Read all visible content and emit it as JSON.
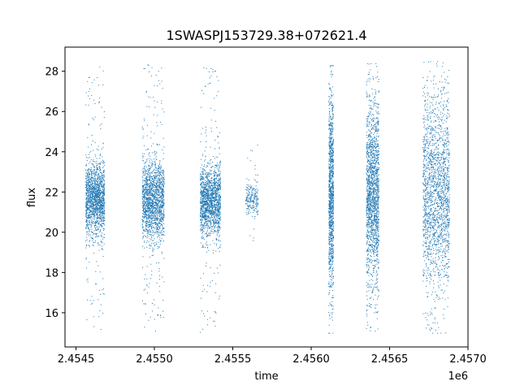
{
  "chart_data": {
    "type": "scatter",
    "title": "1SWASPJ153729.38+072621.4",
    "xlabel": "time",
    "ylabel": "flux",
    "x_offset_label": "1e6",
    "xlim": [
      2454430,
      2457000
    ],
    "ylim": [
      14.3,
      29.2
    ],
    "x_ticks": [
      2454500,
      2455000,
      2455500,
      2456000,
      2456500,
      2457000
    ],
    "x_tick_labels": [
      "2.4545",
      "2.4550",
      "2.4555",
      "2.4560",
      "2.4565",
      "2.4570"
    ],
    "y_ticks": [
      16,
      18,
      20,
      22,
      24,
      26,
      28
    ],
    "y_tick_labels": [
      "16",
      "18",
      "20",
      "22",
      "24",
      "26",
      "28"
    ],
    "grid": false,
    "marker_color": "#1f77b4",
    "series": [
      {
        "clusters": [
          {
            "x_start": 2454560,
            "x_end": 2454680,
            "center": 21.7,
            "core_spread": 0.9,
            "low": 15.0,
            "high": 28.4,
            "points": 1600
          },
          {
            "x_start": 2454920,
            "x_end": 2455060,
            "center": 21.6,
            "core_spread": 1.0,
            "low": 15.0,
            "high": 28.4,
            "points": 1700
          },
          {
            "x_start": 2455290,
            "x_end": 2455420,
            "center": 21.6,
            "core_spread": 0.9,
            "low": 15.0,
            "high": 28.3,
            "points": 1600
          },
          {
            "x_start": 2455580,
            "x_end": 2455660,
            "center": 21.7,
            "core_spread": 0.4,
            "low": 18.5,
            "high": 25.0,
            "points": 220
          },
          {
            "x_start": 2456110,
            "x_end": 2456140,
            "center": 22.0,
            "core_spread": 2.4,
            "low": 15.0,
            "high": 28.3,
            "points": 1100
          },
          {
            "x_start": 2456350,
            "x_end": 2456430,
            "center": 22.0,
            "core_spread": 2.2,
            "low": 15.0,
            "high": 28.4,
            "points": 1700
          },
          {
            "x_start": 2456710,
            "x_end": 2456880,
            "center": 22.0,
            "core_spread": 2.4,
            "low": 15.0,
            "high": 28.5,
            "points": 1900
          }
        ]
      }
    ]
  }
}
